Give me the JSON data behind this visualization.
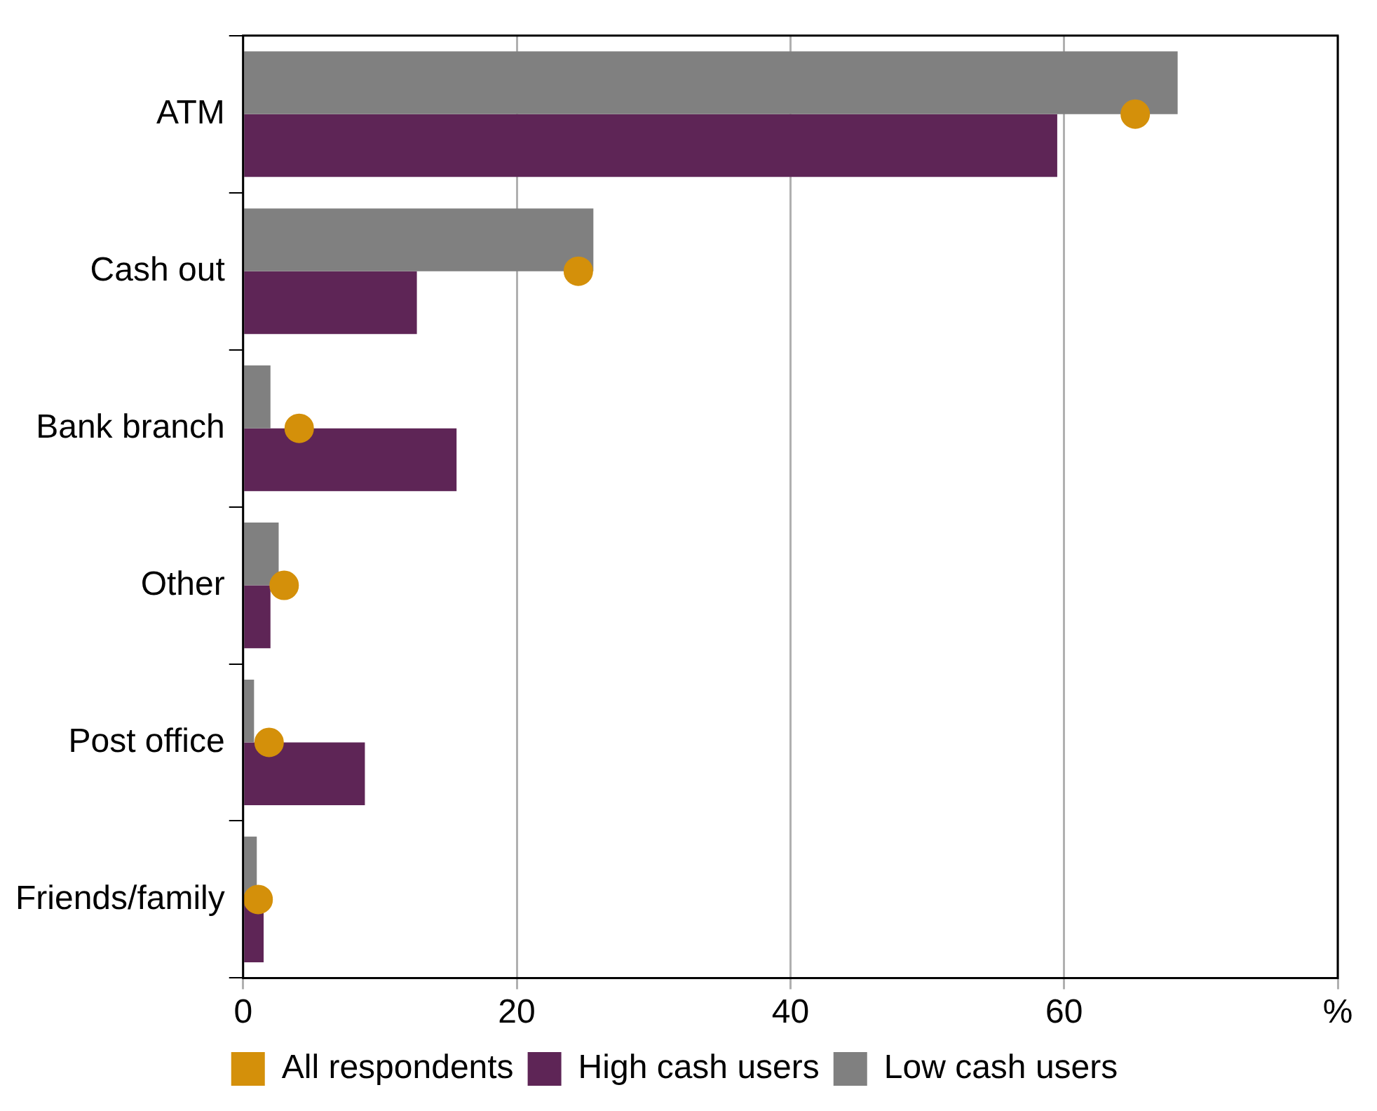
{
  "chart_data": {
    "type": "bar",
    "orientation": "horizontal",
    "categories": [
      "ATM",
      "Cash out",
      "Bank branch",
      "Other",
      "Post office",
      "Friends/family"
    ],
    "series": [
      {
        "name": "All respondents",
        "type": "scatter",
        "color": "#d4900a",
        "x": [
          "ATM",
          "Cash out",
          "Bank branch",
          "Other",
          "Post office",
          "Friends/family"
        ],
        "values": [
          65.2,
          24.5,
          4.1,
          3.0,
          1.9,
          1.1
        ]
      },
      {
        "name": "High cash users",
        "color": "#5e2556",
        "values": [
          59.5,
          12.7,
          15.6,
          2.0,
          8.9,
          1.5
        ]
      },
      {
        "name": "Low cash users",
        "color": "#808080",
        "values": [
          68.3,
          25.6,
          2.0,
          2.6,
          0.8,
          1.0
        ]
      }
    ],
    "xlim": [
      0,
      80
    ],
    "xticks": [
      0,
      20,
      40,
      60,
      {
        "value": 80,
        "label": "%"
      }
    ],
    "grid": "x",
    "legend": "bottom",
    "marker": "circle"
  }
}
